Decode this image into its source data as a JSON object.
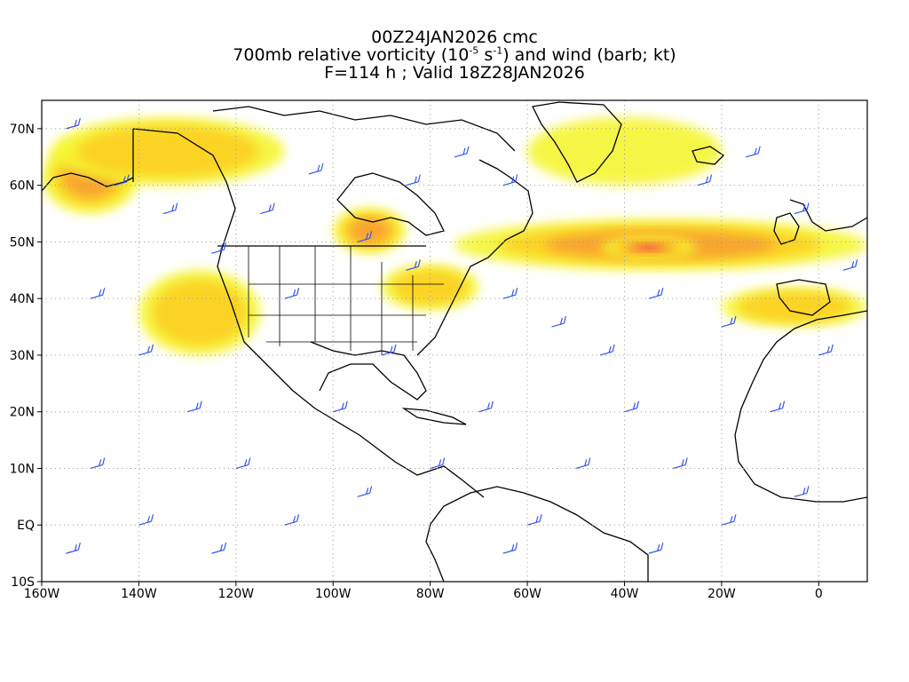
{
  "title": {
    "line1": "00Z24JAN2026 cmc",
    "line2_prefix": "700mb relative vorticity (10",
    "line2_exp1": "-5",
    "line2_mid": " s",
    "line2_exp2": "-1",
    "line2_suffix": ") and wind (barb; kt)",
    "line3": "F=114 h ; Valid 18Z28JAN2026"
  },
  "map": {
    "lon_range": [
      -160,
      10
    ],
    "lat_range": [
      -10,
      75
    ],
    "lon_ticks": [
      "160W",
      "140W",
      "120W",
      "100W",
      "80W",
      "60W",
      "40W",
      "20W",
      "0"
    ],
    "lat_ticks": [
      "70N",
      "60N",
      "50N",
      "40N",
      "30N",
      "20N",
      "10N",
      "EQ",
      "10S"
    ],
    "grid": "dotted",
    "colors": {
      "vort_low": "#f5f530",
      "vort_mid": "#fcd020",
      "vort_high": "#f8a030",
      "vort_higher": "#f06040",
      "vort_peak": "#ff00aa",
      "barbs": "#3355ee",
      "coast": "#000000"
    }
  },
  "vorticity_bands": [
    {
      "lon": [
        -160,
        -140
      ],
      "lat": [
        55,
        68
      ],
      "level": 3
    },
    {
      "lon": [
        -158,
        -110
      ],
      "lat": [
        60,
        72
      ],
      "level": 2
    },
    {
      "lon": [
        -140,
        -115
      ],
      "lat": [
        30,
        45
      ],
      "level": 2
    },
    {
      "lon": [
        -100,
        -85
      ],
      "lat": [
        48,
        56
      ],
      "level": 3
    },
    {
      "lon": [
        -75,
        10
      ],
      "lat": [
        45,
        54
      ],
      "level": 3
    },
    {
      "lon": [
        -45,
        -25
      ],
      "lat": [
        47,
        51
      ],
      "level": 5
    },
    {
      "lon": [
        -60,
        -20
      ],
      "lat": [
        60,
        72
      ],
      "level": 1
    },
    {
      "lon": [
        -90,
        -70
      ],
      "lat": [
        38,
        46
      ],
      "level": 2
    },
    {
      "lon": [
        -20,
        10
      ],
      "lat": [
        35,
        42
      ],
      "level": 2
    }
  ],
  "barbs": [
    {
      "lon": -155,
      "lat": 70
    },
    {
      "lon": -145,
      "lat": 60
    },
    {
      "lon": -135,
      "lat": 55
    },
    {
      "lon": -125,
      "lat": 48
    },
    {
      "lon": -115,
      "lat": 55
    },
    {
      "lon": -105,
      "lat": 62
    },
    {
      "lon": -95,
      "lat": 50
    },
    {
      "lon": -85,
      "lat": 60
    },
    {
      "lon": -75,
      "lat": 65
    },
    {
      "lon": -65,
      "lat": 40
    },
    {
      "lon": -55,
      "lat": 35
    },
    {
      "lon": -45,
      "lat": 30
    },
    {
      "lon": -35,
      "lat": 40
    },
    {
      "lon": -25,
      "lat": 60
    },
    {
      "lon": -15,
      "lat": 65
    },
    {
      "lon": -5,
      "lat": 55
    },
    {
      "lon": -150,
      "lat": 40
    },
    {
      "lon": -140,
      "lat": 30
    },
    {
      "lon": -130,
      "lat": 20
    },
    {
      "lon": -120,
      "lat": 10
    },
    {
      "lon": -110,
      "lat": 0
    },
    {
      "lon": -100,
      "lat": 20
    },
    {
      "lon": -90,
      "lat": 30
    },
    {
      "lon": -80,
      "lat": 10
    },
    {
      "lon": -70,
      "lat": 20
    },
    {
      "lon": -60,
      "lat": 0
    },
    {
      "lon": -50,
      "lat": 10
    },
    {
      "lon": -40,
      "lat": 20
    },
    {
      "lon": -30,
      "lat": 10
    },
    {
      "lon": -20,
      "lat": 0
    },
    {
      "lon": -10,
      "lat": 20
    },
    {
      "lon": 0,
      "lat": 30
    },
    {
      "lon": 5,
      "lat": 45
    },
    {
      "lon": -150,
      "lat": 10
    },
    {
      "lon": -140,
      "lat": 0
    },
    {
      "lon": -155,
      "lat": -5
    },
    {
      "lon": -125,
      "lat": -5
    },
    {
      "lon": -95,
      "lat": 5
    },
    {
      "lon": -65,
      "lat": -5
    },
    {
      "lon": -35,
      "lat": -5
    },
    {
      "lon": -5,
      "lat": 5
    },
    {
      "lon": -85,
      "lat": 45
    },
    {
      "lon": -65,
      "lat": 60
    },
    {
      "lon": -110,
      "lat": 40
    },
    {
      "lon": -20,
      "lat": 35
    }
  ]
}
